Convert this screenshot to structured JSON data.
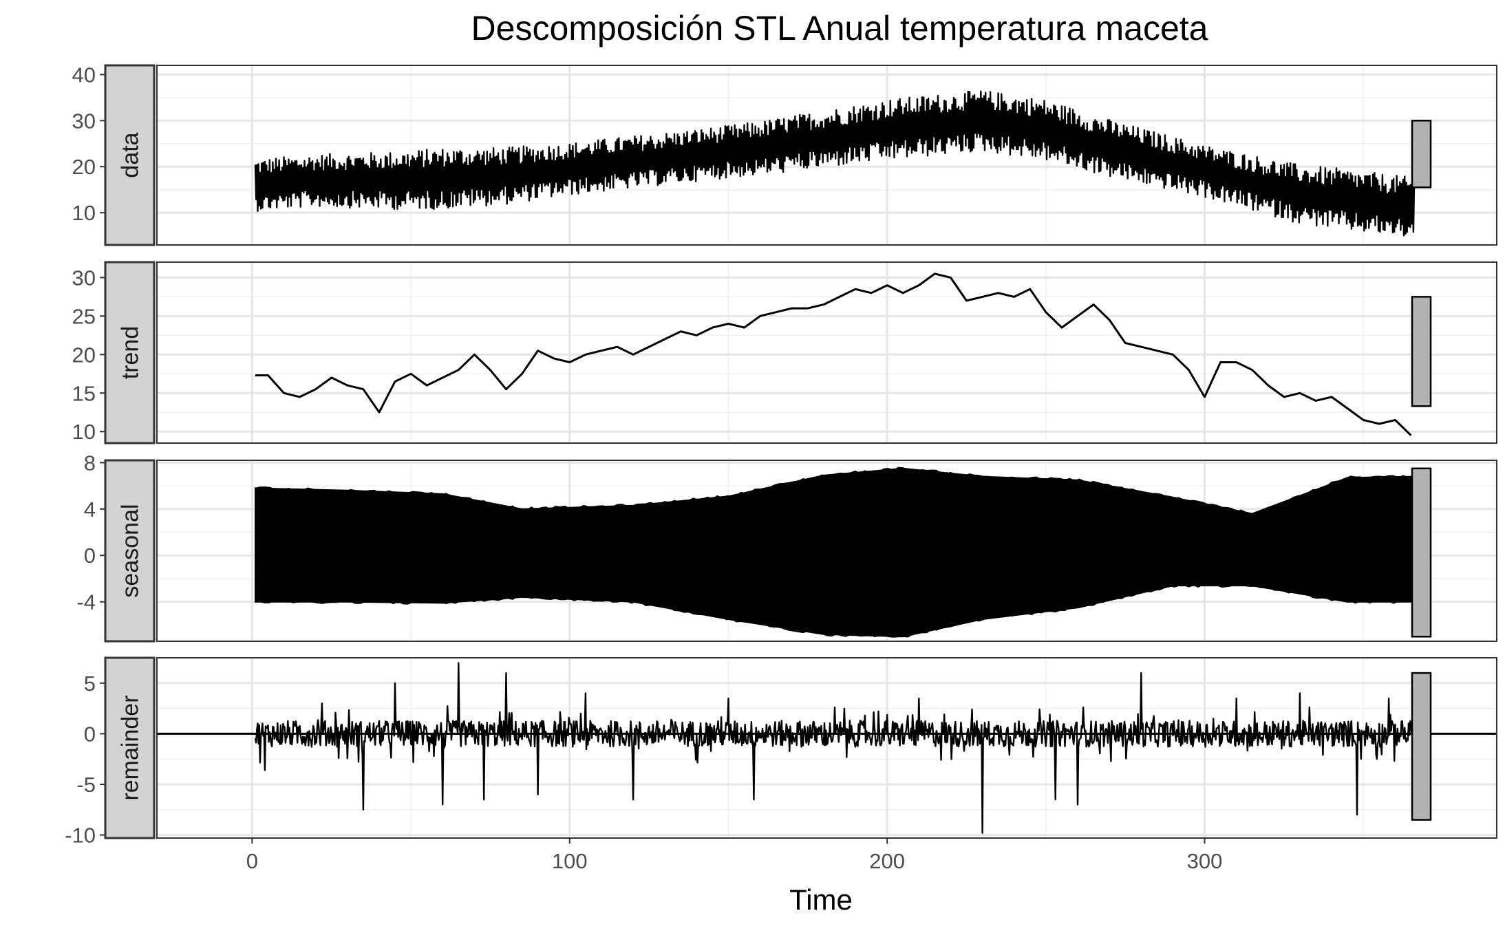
{
  "chart_data": {
    "type": "line",
    "title": "Descomposición STL Anual temperatura maceta",
    "xlabel": "Time",
    "xlim": [
      -30,
      392
    ],
    "x_ticks": [
      0,
      100,
      200,
      300
    ],
    "x_tick_labels": [
      "0",
      "100",
      "200",
      "300"
    ],
    "x_range": [
      1,
      366
    ],
    "grid": true,
    "theme": "bw",
    "line_color": "#000000",
    "strip_fill": "#d3d3d3",
    "range_bar_fill": "#b3b3b3",
    "panels": [
      {
        "strip_label": "data",
        "ylim": [
          3,
          42
        ],
        "y_ticks": [
          10,
          20,
          30,
          40
        ],
        "y_tick_labels": [
          "10",
          "20",
          "30",
          "40"
        ],
        "range_bar": [
          15.5,
          30
        ],
        "series": {
          "kind": "oscillating",
          "center_x": [
            1,
            20,
            45,
            80,
            120,
            160,
            200,
            230,
            250,
            270,
            300,
            330,
            366
          ],
          "center_y": [
            16,
            17,
            17,
            18,
            21,
            24,
            28,
            30,
            28,
            24,
            19,
            14,
            11
          ],
          "env_x": [
            1,
            20,
            60,
            100,
            150,
            200,
            250,
            300,
            340,
            366
          ],
          "env_y": [
            6,
            6,
            7,
            6,
            6,
            7,
            7,
            6,
            7,
            7
          ],
          "min": 4.5,
          "max": 40.5
        }
      },
      {
        "strip_label": "trend",
        "ylim": [
          8.5,
          32
        ],
        "y_ticks": [
          10,
          15,
          20,
          25,
          30
        ],
        "y_tick_labels": [
          "10",
          "15",
          "20",
          "25",
          "30"
        ],
        "range_bar": [
          13.3,
          27.5
        ],
        "series": {
          "kind": "line",
          "x": [
            1,
            5,
            10,
            15,
            20,
            25,
            30,
            35,
            40,
            45,
            50,
            55,
            60,
            65,
            70,
            75,
            80,
            85,
            90,
            95,
            100,
            105,
            110,
            115,
            120,
            125,
            130,
            135,
            140,
            145,
            150,
            155,
            160,
            165,
            170,
            175,
            180,
            185,
            190,
            195,
            200,
            205,
            210,
            215,
            220,
            225,
            230,
            235,
            240,
            245,
            250,
            255,
            260,
            265,
            270,
            275,
            280,
            285,
            290,
            295,
            300,
            305,
            310,
            315,
            320,
            325,
            330,
            335,
            340,
            345,
            350,
            355,
            360,
            365
          ],
          "y": [
            17.3,
            17.3,
            15.0,
            14.5,
            15.5,
            17.0,
            16.0,
            15.5,
            12.5,
            16.5,
            17.5,
            16.0,
            17.0,
            18.0,
            20.0,
            18.0,
            15.5,
            17.5,
            20.5,
            19.5,
            19.0,
            20.0,
            20.5,
            21.0,
            20.0,
            21.0,
            22.0,
            23.0,
            22.5,
            23.5,
            24.0,
            23.5,
            25.0,
            25.5,
            26.0,
            26.0,
            26.5,
            27.5,
            28.5,
            28.0,
            29.0,
            28.0,
            29.0,
            30.5,
            30.0,
            27.0,
            27.5,
            28.0,
            27.5,
            28.5,
            25.5,
            23.5,
            25.0,
            26.5,
            24.5,
            21.5,
            21.0,
            20.5,
            20.0,
            18.0,
            14.5,
            19.0,
            19.0,
            18.0,
            16.0,
            14.5,
            15.0,
            14.0,
            14.5,
            13.0,
            11.5,
            11.0,
            11.5,
            9.5
          ]
        }
      },
      {
        "strip_label": "seasonal",
        "ylim": [
          -7.4,
          8.2
        ],
        "y_ticks": [
          -4,
          0,
          4,
          8
        ],
        "y_tick_labels": [
          "-4",
          "0",
          "4",
          "8"
        ],
        "range_bar": [
          -7.0,
          7.5
        ],
        "series": {
          "kind": "envelope",
          "x": [
            1,
            30,
            60,
            85,
            120,
            150,
            180,
            205,
            230,
            260,
            290,
            315,
            345,
            366
          ],
          "upper": [
            5.8,
            5.6,
            5.3,
            4.0,
            4.3,
            5.1,
            6.9,
            7.5,
            6.8,
            6.5,
            5.0,
            3.6,
            6.7,
            6.8
          ],
          "lower": [
            -4.0,
            -4.0,
            -4.1,
            -3.6,
            -4.0,
            -5.5,
            -6.8,
            -7.0,
            -5.5,
            -4.5,
            -2.6,
            -2.6,
            -4.0,
            -4.0
          ]
        }
      },
      {
        "strip_label": "remainder",
        "ylim": [
          -10.3,
          7.5
        ],
        "y_ticks": [
          -10,
          -5,
          0,
          5
        ],
        "y_tick_labels": [
          "-10",
          "-5",
          "0",
          "5"
        ],
        "range_bar": [
          -8.5,
          6.0
        ],
        "zero_line": true,
        "series": {
          "kind": "noise",
          "base_amp": 1.3,
          "spikes": [
            {
              "x": 4,
              "y": -3.6
            },
            {
              "x": 22,
              "y": 3.0
            },
            {
              "x": 35,
              "y": -7.5
            },
            {
              "x": 45,
              "y": 5.0
            },
            {
              "x": 60,
              "y": -7.0
            },
            {
              "x": 65,
              "y": 7.0
            },
            {
              "x": 73,
              "y": -6.5
            },
            {
              "x": 80,
              "y": 6.0
            },
            {
              "x": 90,
              "y": -6.0
            },
            {
              "x": 105,
              "y": 4.0
            },
            {
              "x": 120,
              "y": -6.5
            },
            {
              "x": 150,
              "y": 3.5
            },
            {
              "x": 158,
              "y": -6.5
            },
            {
              "x": 210,
              "y": 3.5
            },
            {
              "x": 230,
              "y": -9.8
            },
            {
              "x": 253,
              "y": -6.5
            },
            {
              "x": 260,
              "y": -7.0
            },
            {
              "x": 280,
              "y": 6.0
            },
            {
              "x": 310,
              "y": 3.5
            },
            {
              "x": 330,
              "y": 4.0
            },
            {
              "x": 348,
              "y": -8.0
            },
            {
              "x": 358,
              "y": 3.5
            }
          ],
          "min": -9.8,
          "max": 7.0
        }
      }
    ]
  }
}
